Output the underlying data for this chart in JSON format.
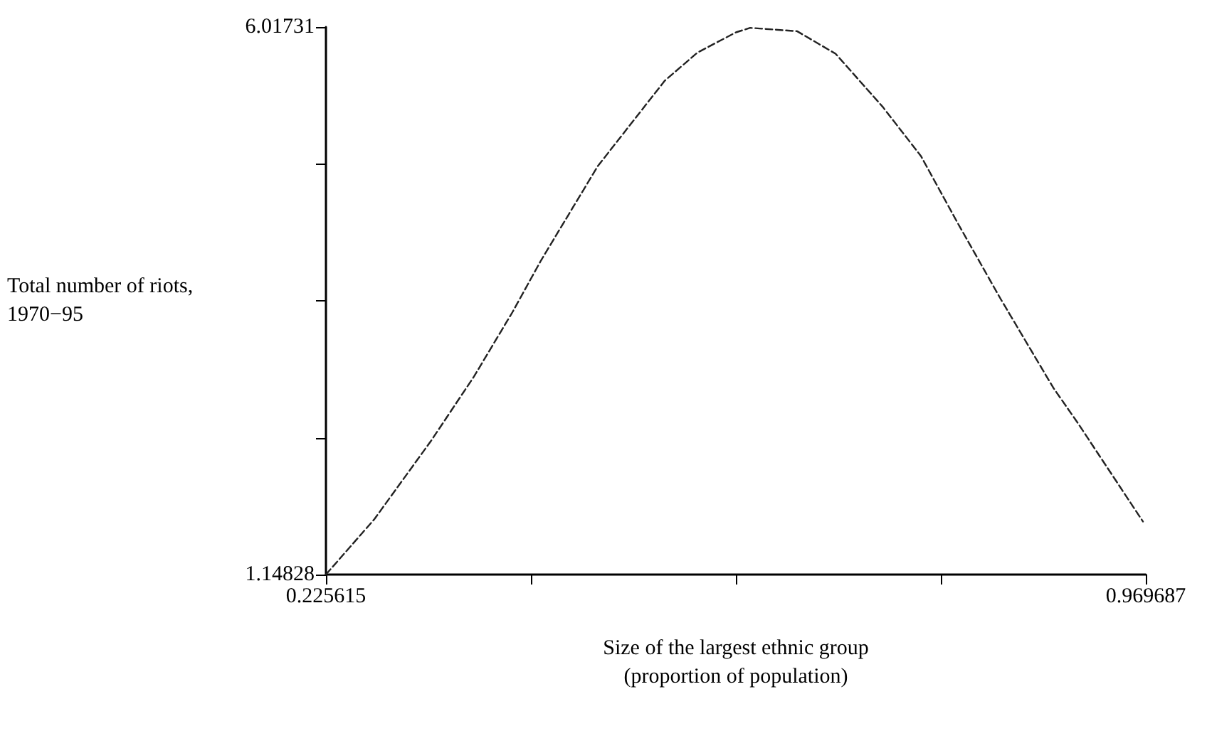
{
  "chart_data": {
    "type": "line",
    "xlabel": "Size of the largest ethnic group\n(proportion of population)",
    "ylabel": "Total number of riots,\n1970−95",
    "x": [
      0.2257,
      0.2695,
      0.3212,
      0.36,
      0.3948,
      0.4207,
      0.4723,
      0.5331,
      0.5628,
      0.5977,
      0.6106,
      0.6532,
      0.6881,
      0.7307,
      0.7656,
      0.7992,
      0.8379,
      0.8857,
      0.9077,
      0.9671
    ],
    "series": [
      {
        "color": "#222222",
        "values": [
          1.15,
          1.64,
          2.34,
          2.91,
          3.48,
          3.94,
          4.78,
          5.54,
          5.79,
          5.97,
          6.01,
          5.98,
          5.78,
          5.31,
          4.87,
          4.27,
          3.6,
          2.81,
          2.5,
          1.62
        ]
      }
    ],
    "xlim": [
      0.225615,
      0.969687
    ],
    "ylim": [
      1.14828,
      6.01731
    ],
    "xticks": [
      0.225615,
      {
        "value": 0.411633,
        "label": null
      },
      {
        "value": 0.597651,
        "label": null
      },
      {
        "value": 0.783669,
        "label": null
      },
      0.969687
    ],
    "yticks": [
      1.14828,
      {
        "value": 2.3655375,
        "label": null
      },
      {
        "value": 3.582795,
        "label": null
      },
      {
        "value": 4.8000525,
        "label": null
      },
      6.01731
    ],
    "grid": false,
    "marker": "none",
    "line_style": "dashed"
  }
}
